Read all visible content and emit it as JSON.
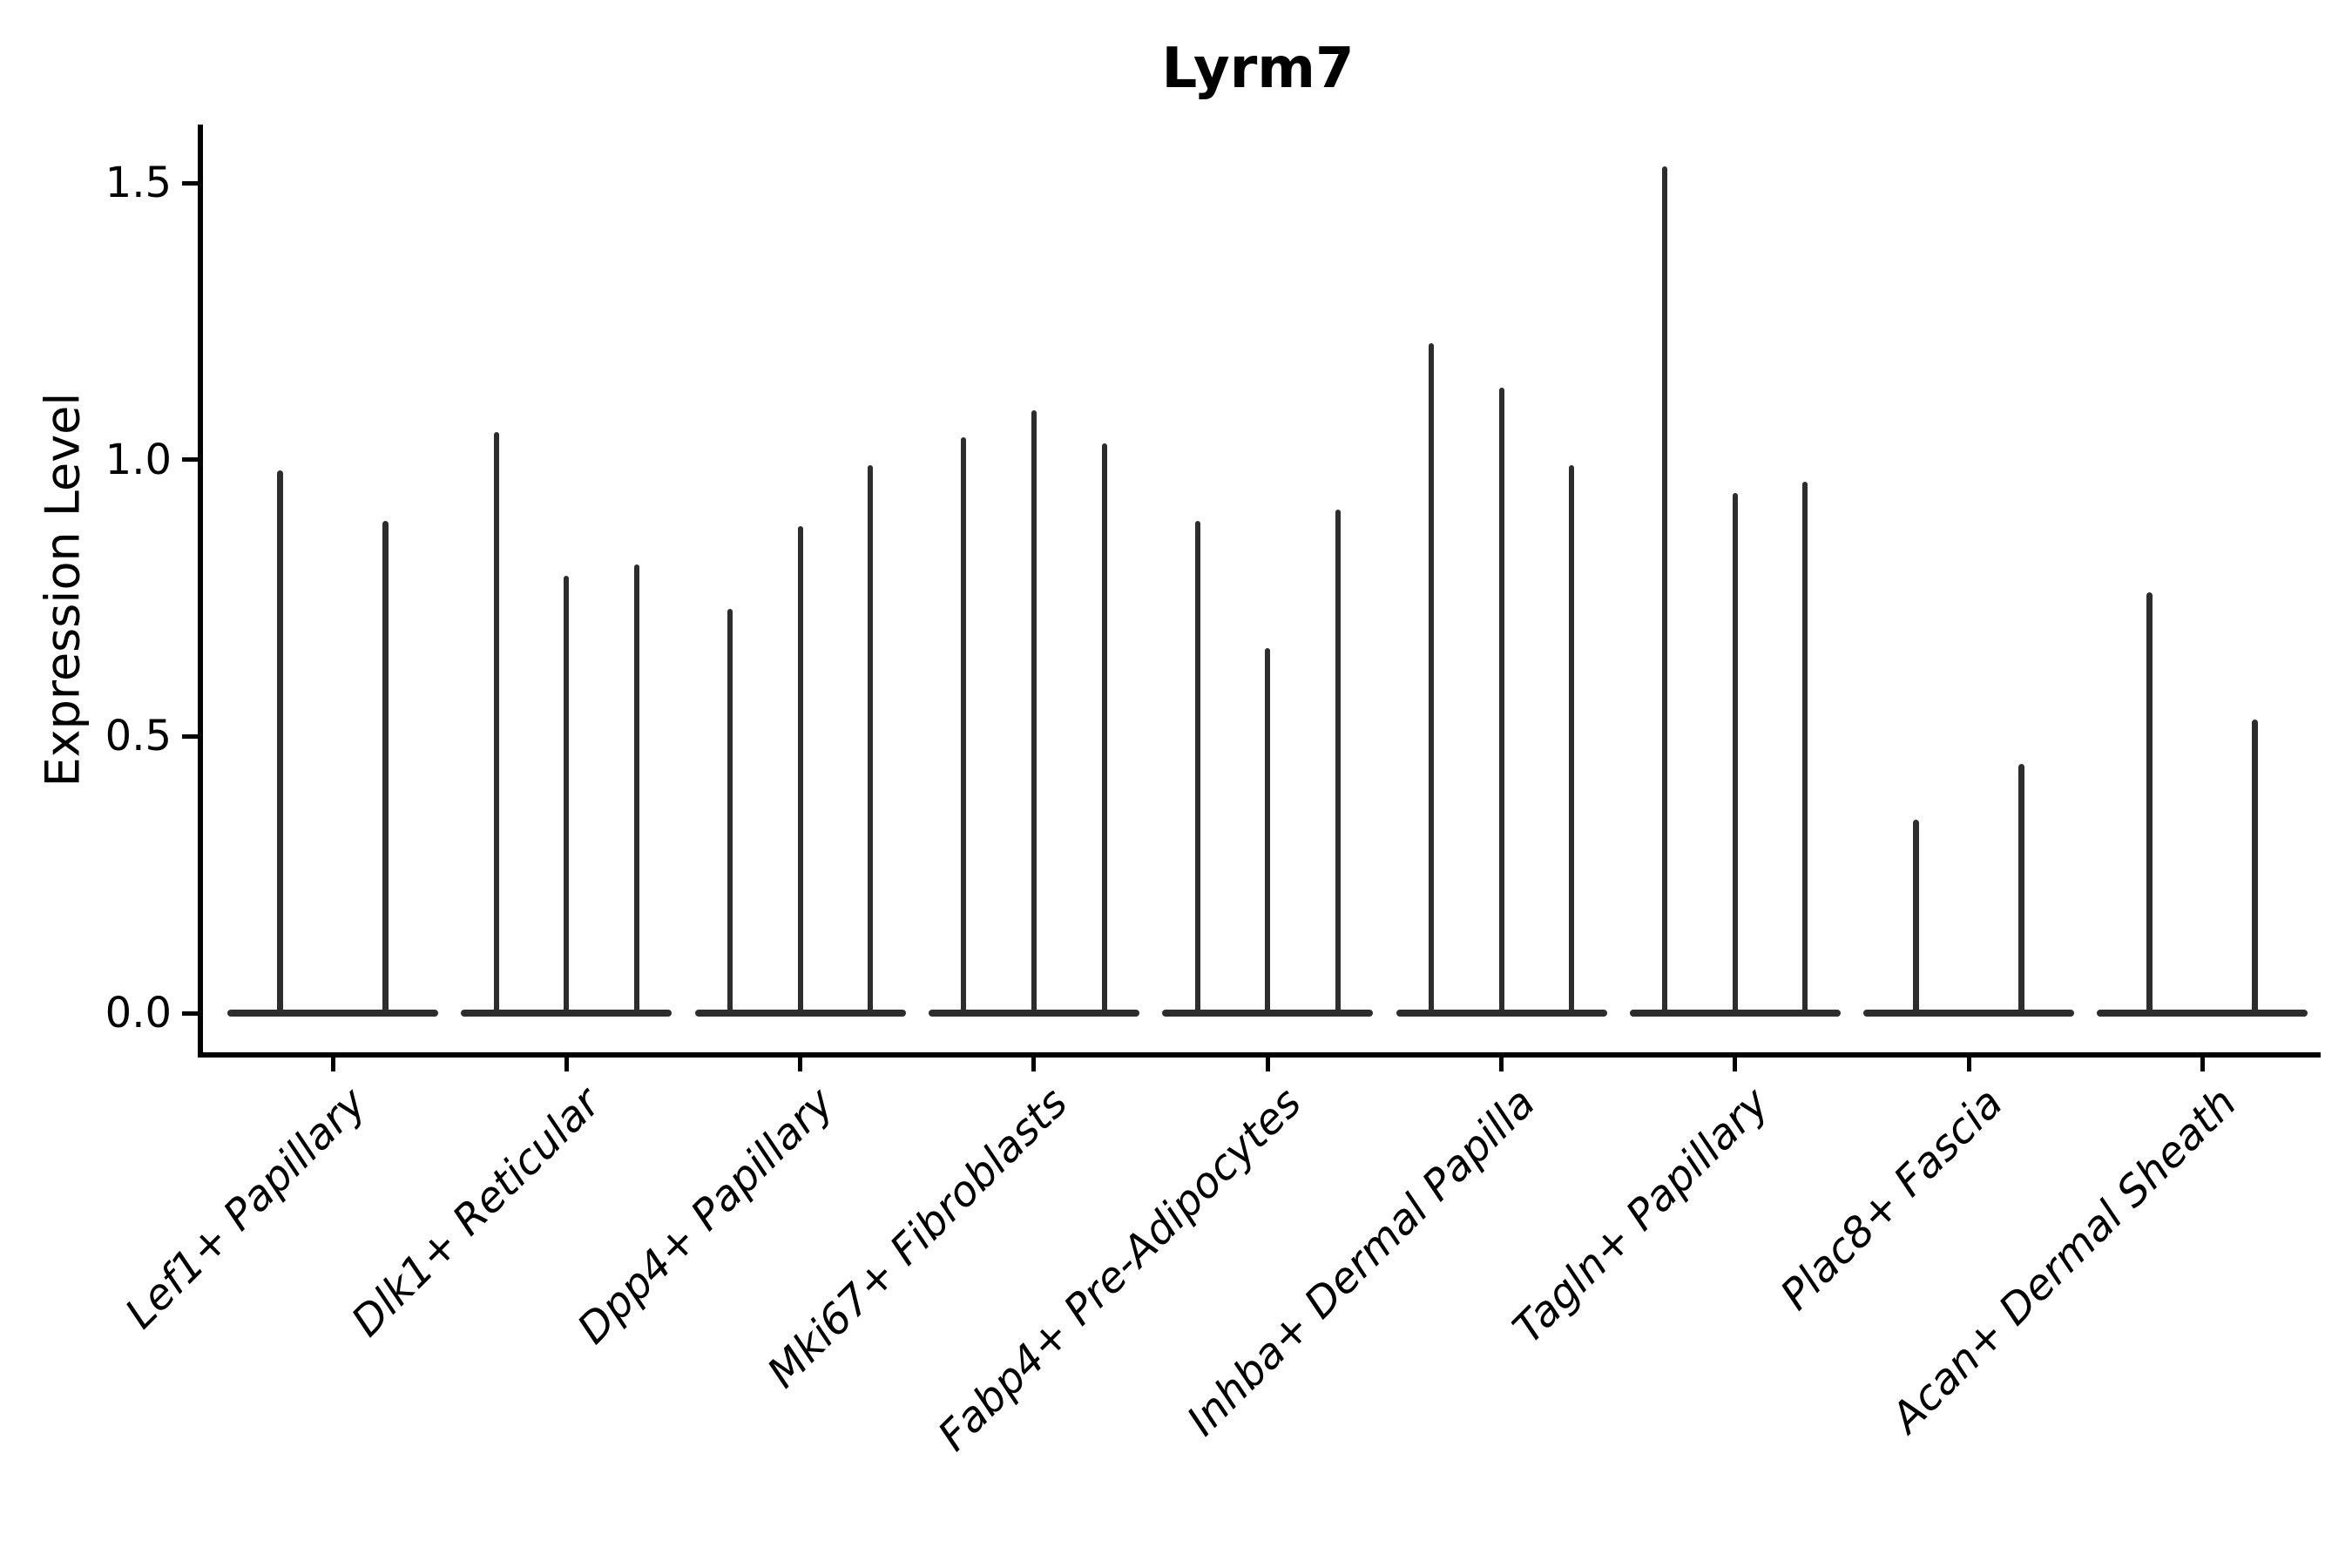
{
  "title": "Lyrm7",
  "y_axis": {
    "label": "Expression Level",
    "tick_labels": [
      "0.0",
      "0.5",
      "1.0",
      "1.5"
    ]
  },
  "chart_data": {
    "type": "violin",
    "title": "Lyrm7",
    "xlabel": "",
    "ylabel": "Expression Level",
    "ylim": [
      0,
      1.6
    ],
    "yticks": [
      0.0,
      0.5,
      1.0,
      1.5
    ],
    "x_tick_rotation": 45,
    "grid": false,
    "legend": false,
    "violin_color": "#2d2d2d",
    "axis_color": "#000000",
    "description": "Each category shows 2-3 very thin violins: wide flat density bulge at expression 0 and a thin tail up to the max expression value listed per violin.",
    "categories": [
      "Lef1+ Papillary",
      "Dlk1+ Reticular",
      "Dpp4+ Papillary",
      "Mki67+ Fibroblasts",
      "Fabp4+ Pre-Adipocytes",
      "Inhba+ Dermal Papilla",
      "Tagln+ Papillary",
      "Plac8+ Fascia",
      "Acan+ Dermal Sheath"
    ],
    "groups": [
      {
        "category": "Lef1+ Papillary",
        "violin_max_values": [
          0.98,
          0.89
        ]
      },
      {
        "category": "Dlk1+ Reticular",
        "violin_max_values": [
          1.05,
          0.79,
          0.81
        ]
      },
      {
        "category": "Dpp4+ Papillary",
        "violin_max_values": [
          0.73,
          0.88,
          0.99
        ]
      },
      {
        "category": "Mki67+ Fibroblasts",
        "violin_max_values": [
          1.04,
          1.09,
          1.03
        ]
      },
      {
        "category": "Fabp4+ Pre-Adipocytes",
        "violin_max_values": [
          0.89,
          0.66,
          0.91
        ]
      },
      {
        "category": "Inhba+ Dermal Papilla",
        "violin_max_values": [
          1.21,
          1.13,
          0.99
        ]
      },
      {
        "category": "Tagln+ Papillary",
        "violin_max_values": [
          1.53,
          0.94,
          0.96
        ]
      },
      {
        "category": "Plac8+ Fascia",
        "violin_max_values": [
          0.35,
          0.45
        ]
      },
      {
        "category": "Acan+ Dermal Sheath",
        "violin_max_values": [
          0.76,
          0.53
        ]
      }
    ]
  }
}
